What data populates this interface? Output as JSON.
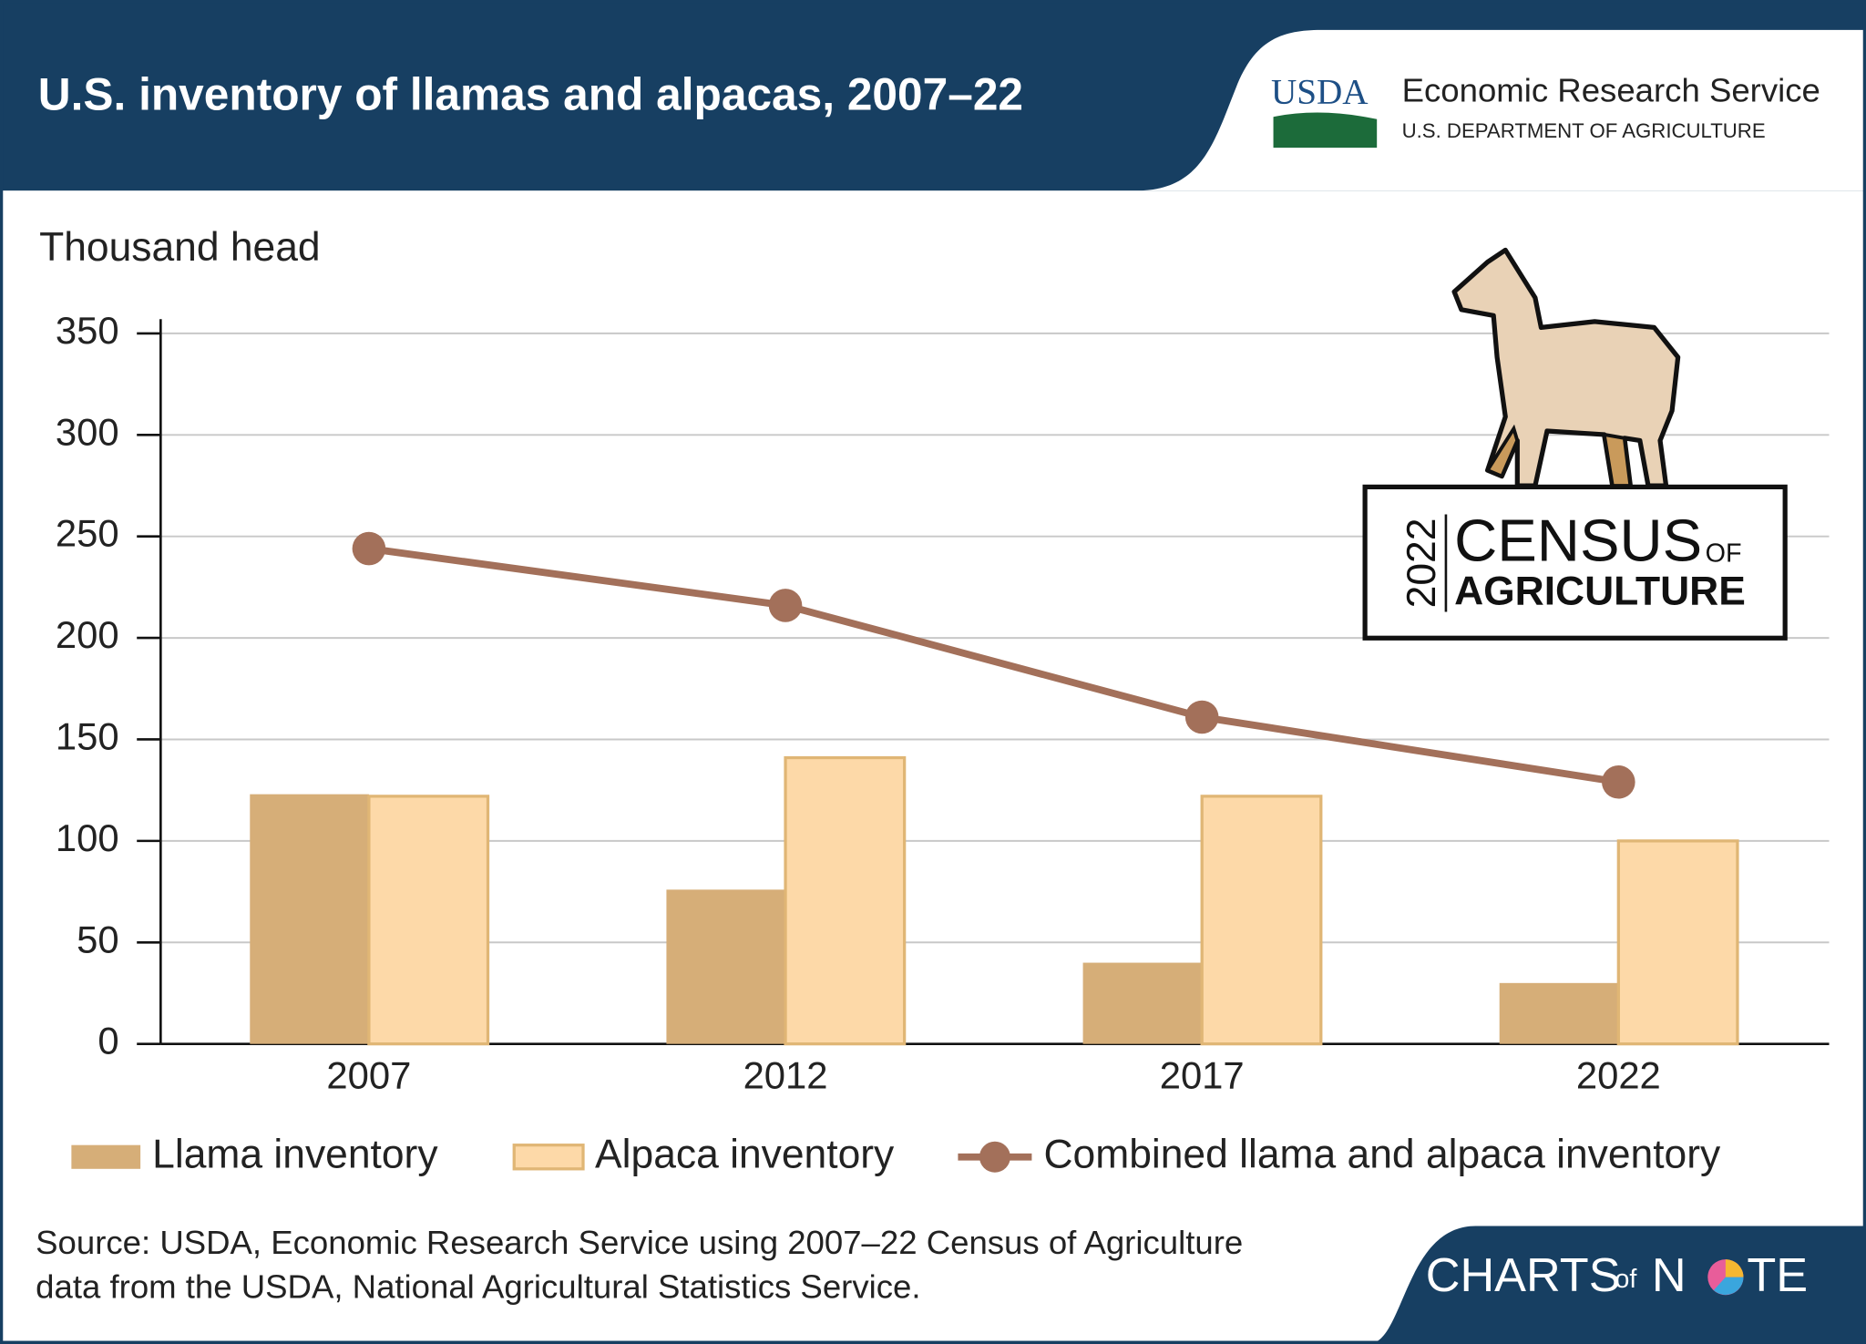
{
  "header": {
    "usda": "USDA",
    "agency": "Economic Research Service",
    "department": "U.S. DEPARTMENT OF AGRICULTURE"
  },
  "badge": {
    "year": "2022",
    "census": "CENSUS",
    "of": "OF",
    "agriculture": "AGRICULTURE"
  },
  "footer": {
    "source_line_1": "Source: USDA, Economic Research Service using 2007–22 Census of Agriculture",
    "source_line_2": "data from the USDA, National Agricultural Statistics Service.",
    "brand_1": "CHARTS",
    "brand_2": "of",
    "brand_3": "N",
    "brand_4": "TE"
  },
  "chart_data": {
    "type": "bar",
    "title": "U.S. inventory of llamas and alpacas, 2007–22",
    "y_label": "Thousand head",
    "categories": [
      "2007",
      "2012",
      "2017",
      "2022"
    ],
    "series": [
      {
        "name": "Llama inventory",
        "color": "#d6ae78",
        "values": [
          123,
          76,
          40,
          30
        ]
      },
      {
        "name": "Alpaca inventory",
        "color": "#fdd9a8",
        "values": [
          122,
          141,
          122,
          100
        ]
      },
      {
        "name": "Combined llama and alpaca inventory",
        "color": "#a3705a",
        "type": "line",
        "values": [
          244,
          216,
          161,
          129
        ]
      }
    ],
    "ylim": [
      0,
      350
    ],
    "yticks": [
      0,
      50,
      100,
      150,
      200,
      250,
      300,
      350
    ],
    "grid": true
  }
}
